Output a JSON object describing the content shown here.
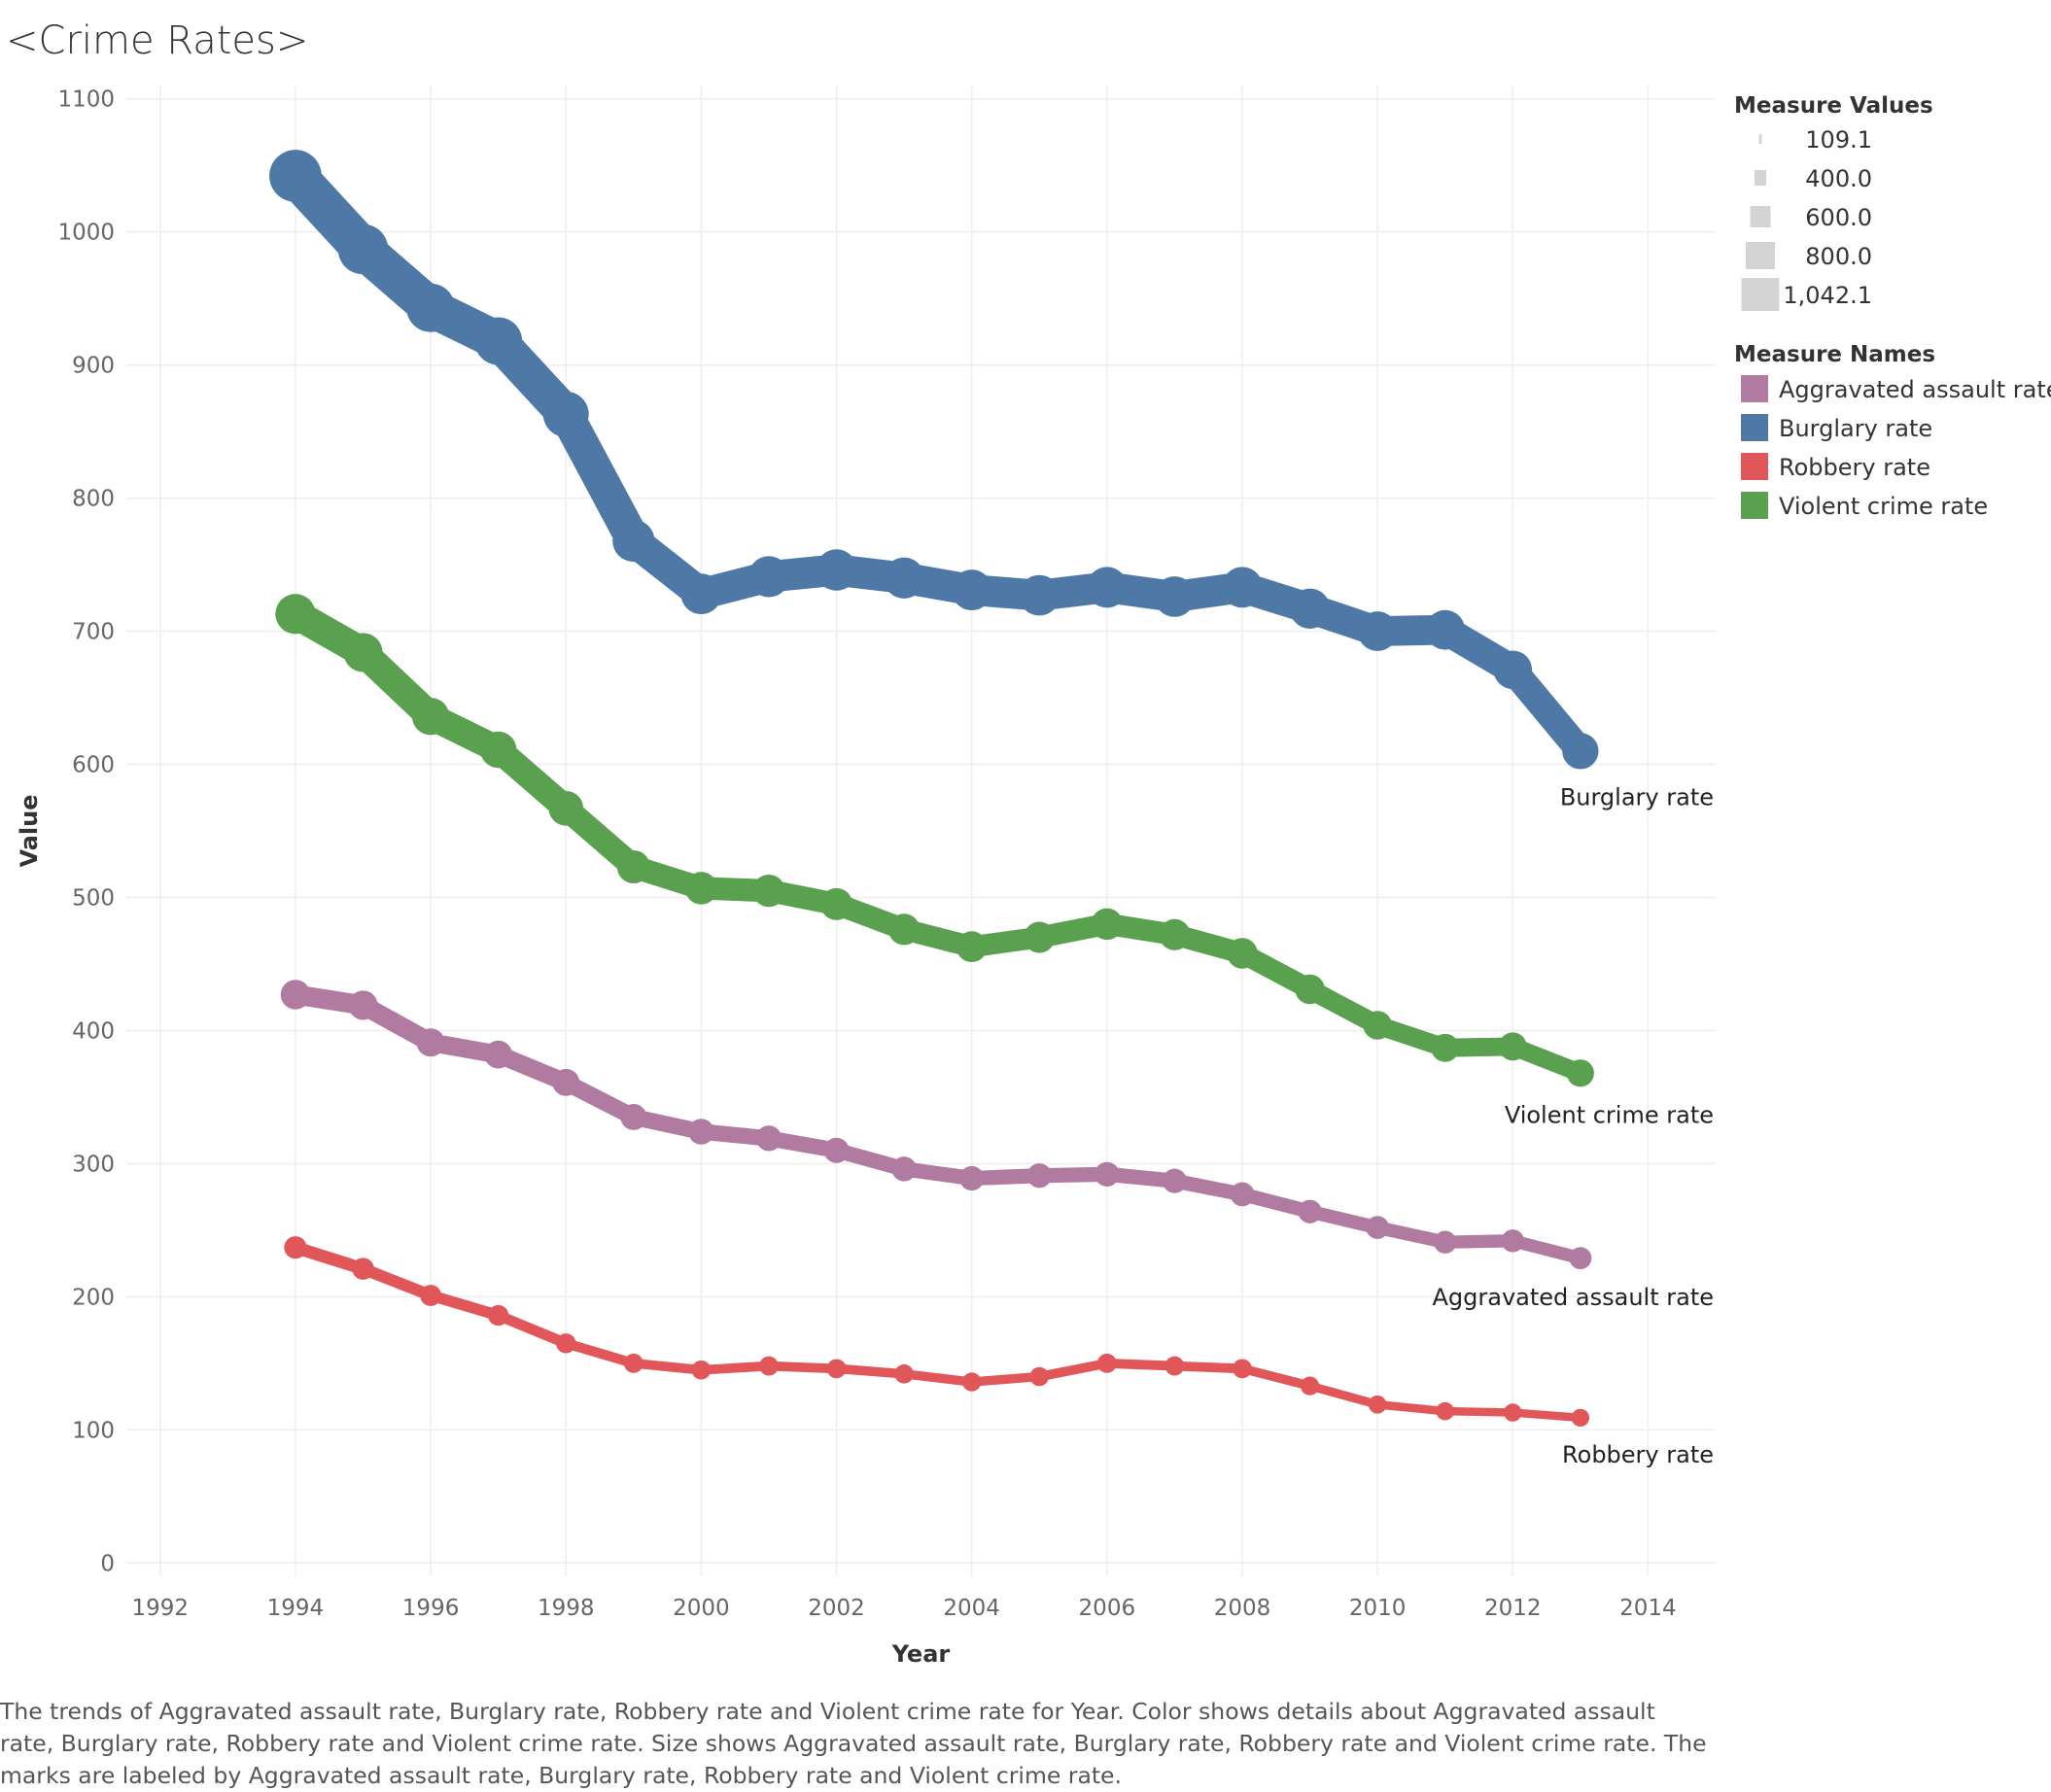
{
  "title": "<Crime Rates>",
  "caption": "The trends of Aggravated  assault rate, Burglary  rate, Robbery  rate and Violent  crime  rate for Year.  Color shows details about Aggravated  assault rate, Burglary  rate, Robbery  rate and Violent  crime  rate.  Size shows Aggravated  assault rate, Burglary  rate, Robbery  rate and Violent  crime  rate.  The marks are labeled by Aggravated  assault rate, Burglary  rate, Robbery  rate and Violent  crime  rate.",
  "chart_data": {
    "type": "line",
    "title": "<Crime Rates>",
    "xlabel": "Year",
    "ylabel": "Value",
    "xlim": [
      1991.5,
      2015
    ],
    "ylim": [
      -10,
      1110
    ],
    "x_ticks": [
      1992,
      1994,
      1996,
      1998,
      2000,
      2002,
      2004,
      2006,
      2008,
      2010,
      2012,
      2014
    ],
    "y_ticks": [
      0,
      100,
      200,
      300,
      400,
      500,
      600,
      700,
      800,
      900,
      1000,
      1100
    ],
    "grid": true,
    "x": [
      1994,
      1995,
      1996,
      1997,
      1998,
      1999,
      2000,
      2001,
      2002,
      2003,
      2004,
      2005,
      2006,
      2007,
      2008,
      2009,
      2010,
      2011,
      2012,
      2013
    ],
    "series": [
      {
        "name": "Burglary rate",
        "color": "#4e79a7",
        "label": "Burglary rate",
        "values": [
          1042.1,
          987,
          943,
          918,
          863,
          768,
          728,
          741,
          746,
          740,
          731,
          727,
          733,
          726,
          733,
          717,
          700,
          701,
          671,
          610
        ]
      },
      {
        "name": "Violent crime rate",
        "color": "#59a14f",
        "label": "Violent crime rate",
        "values": [
          713,
          684,
          636,
          611,
          567,
          523,
          507,
          505,
          495,
          476,
          463,
          470,
          480,
          472,
          458,
          431,
          404,
          387,
          388,
          368
        ]
      },
      {
        "name": "Aggravated assault rate",
        "color": "#b07aa1",
        "label": "Aggravated assault rate",
        "values": [
          427,
          419,
          391,
          382,
          361,
          335,
          324,
          319,
          310,
          296,
          289,
          291,
          292,
          287,
          277,
          264,
          252,
          241,
          242,
          229
        ]
      },
      {
        "name": "Robbery rate",
        "color": "#e15759",
        "label": "Robbery rate",
        "values": [
          237,
          221,
          201,
          186,
          165,
          150,
          145,
          148,
          146,
          142,
          136,
          140,
          150,
          148,
          146,
          133,
          119,
          114,
          113,
          109.1
        ]
      }
    ],
    "legend": {
      "placement": "right",
      "size_title": "Measure Values",
      "size_entries": [
        "109.1",
        "400.0",
        "600.0",
        "800.0",
        "1,042.1"
      ],
      "size_values": [
        109.1,
        400,
        600,
        800,
        1042.1
      ],
      "color_title": "Measure Names",
      "color_entries": [
        {
          "name": "Aggravated assault rate",
          "color": "#b07aa1"
        },
        {
          "name": "Burglary rate",
          "color": "#4e79a7"
        },
        {
          "name": "Robbery rate",
          "color": "#e15759"
        },
        {
          "name": "Violent crime rate",
          "color": "#59a14f"
        }
      ]
    }
  }
}
